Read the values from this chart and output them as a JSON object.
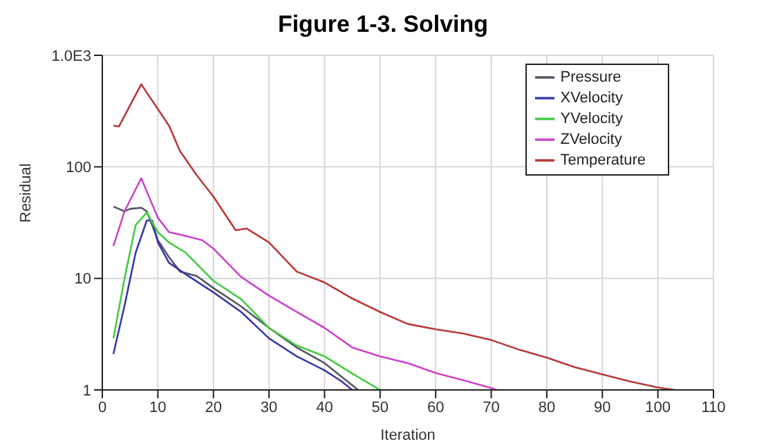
{
  "chart_data": {
    "type": "line",
    "title": "Figure 1-3. Solving",
    "xlabel": "Iteration",
    "ylabel": "Residual",
    "log": "y",
    "grid": true,
    "legend": "top right",
    "marker": "none",
    "xlim": [
      0,
      110
    ],
    "xticks": [
      0,
      10,
      20,
      30,
      40,
      50,
      60,
      70,
      80,
      90,
      100,
      110
    ],
    "ylim": [
      1,
      1000
    ],
    "yticks": [
      1,
      10,
      100,
      {
        "value": 1000,
        "label": "1.0E3"
      }
    ],
    "series": [
      {
        "name": "Pressure",
        "color": "#555566",
        "x": [
          2,
          4,
          5,
          7,
          8,
          10,
          12,
          14,
          17,
          20,
          25,
          30,
          35,
          40,
          45,
          46
        ],
        "values": [
          44,
          40,
          42,
          43,
          40,
          22,
          15.5,
          11.5,
          10.5,
          8.2,
          5.6,
          3.6,
          2.4,
          1.74,
          1.1,
          1
        ]
      },
      {
        "name": "XVelocity",
        "color": "#3a3aa8",
        "x": [
          2,
          4,
          6,
          8,
          9,
          10,
          12,
          15,
          20,
          25,
          30,
          35,
          40,
          43,
          45
        ],
        "values": [
          2.1,
          5.7,
          17,
          33,
          33,
          21,
          13.8,
          10.9,
          7.5,
          5,
          2.9,
          2,
          1.5,
          1.2,
          1
        ]
      },
      {
        "name": "YVelocity",
        "color": "#44cc44",
        "x": [
          2,
          4,
          6,
          8,
          10,
          12,
          15,
          18,
          20,
          25,
          30,
          35,
          40,
          45,
          50
        ],
        "values": [
          2.9,
          10,
          30,
          39,
          26,
          21,
          17,
          12,
          9.5,
          6.5,
          3.6,
          2.5,
          2,
          1.4,
          1
        ]
      },
      {
        "name": "ZVelocity",
        "color": "#cc44cc",
        "x": [
          2,
          4,
          7,
          10,
          12,
          15,
          18,
          20,
          25,
          30,
          35,
          40,
          45,
          50,
          55,
          60,
          65,
          70,
          71
        ],
        "values": [
          19.5,
          40,
          79,
          35,
          26,
          24,
          22,
          18.5,
          10.3,
          7,
          5,
          3.6,
          2.4,
          2,
          1.74,
          1.42,
          1.22,
          1.04,
          1
        ]
      },
      {
        "name": "Temperature",
        "color": "#b83a3a",
        "x": [
          2,
          3,
          7,
          10,
          12,
          14,
          17,
          20,
          24,
          26,
          30,
          35,
          40,
          45,
          50,
          55,
          60,
          65,
          70,
          75,
          80,
          85,
          90,
          95,
          100,
          103
        ],
        "values": [
          234,
          230,
          550,
          330,
          234,
          138,
          84,
          54,
          27,
          28,
          21,
          11.5,
          9.2,
          6.6,
          5,
          3.9,
          3.5,
          3.2,
          2.8,
          2.3,
          1.95,
          1.6,
          1.38,
          1.19,
          1.05,
          1
        ]
      }
    ]
  }
}
